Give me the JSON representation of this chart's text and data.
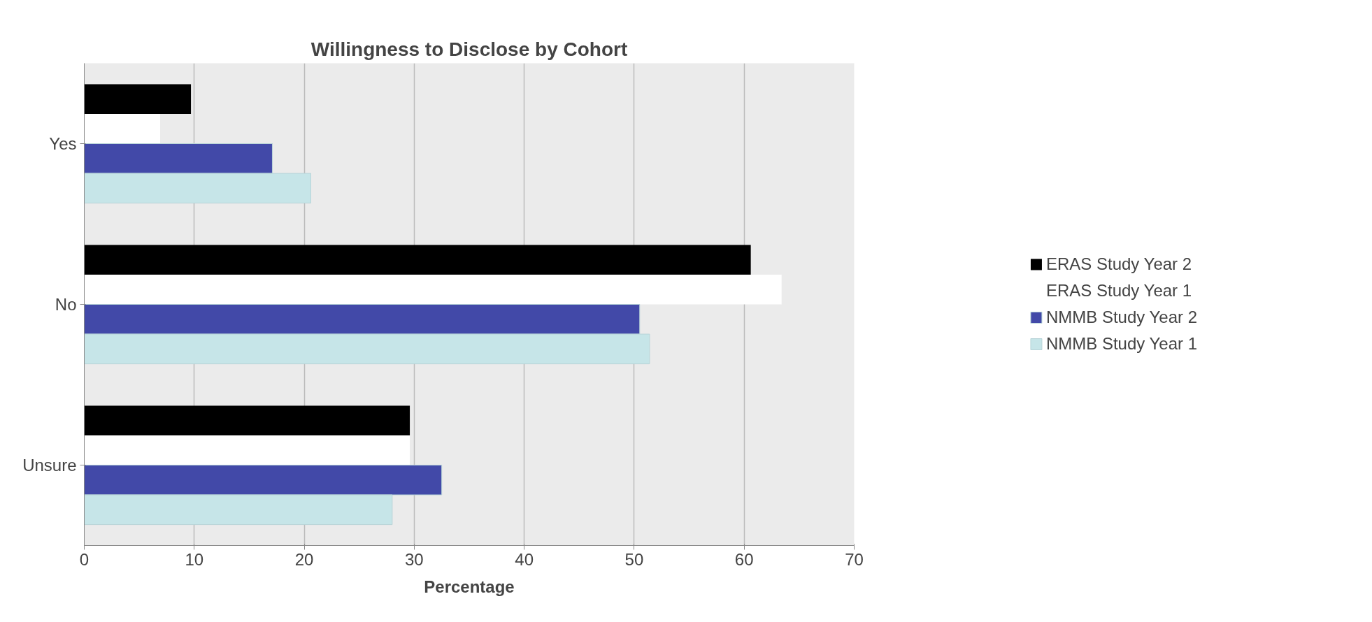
{
  "chart_data": {
    "type": "bar",
    "orientation": "horizontal",
    "title": "Willingness to Disclose by Cohort",
    "xlabel": "Percentage",
    "categories": [
      "Yes",
      "No",
      "Unsure"
    ],
    "series": [
      {
        "name": "ERAS Study Year 2",
        "color": "#000000",
        "values": [
          9.7,
          60.6,
          29.6
        ]
      },
      {
        "name": "ERAS Study Year 1",
        "color": "#ffffff",
        "values": [
          6.9,
          63.4,
          29.6
        ]
      },
      {
        "name": "NMMB Study Year 2",
        "color": "#4249a8",
        "values": [
          17.1,
          50.5,
          32.5
        ]
      },
      {
        "name": "NMMB Study Year 1",
        "color": "#c6e5e8",
        "values": [
          20.6,
          51.4,
          28.0
        ]
      }
    ],
    "xlim": [
      0,
      70
    ],
    "xticks": [
      0,
      10,
      20,
      30,
      40,
      50,
      60,
      70
    ],
    "grid": "x",
    "legend": "right"
  }
}
